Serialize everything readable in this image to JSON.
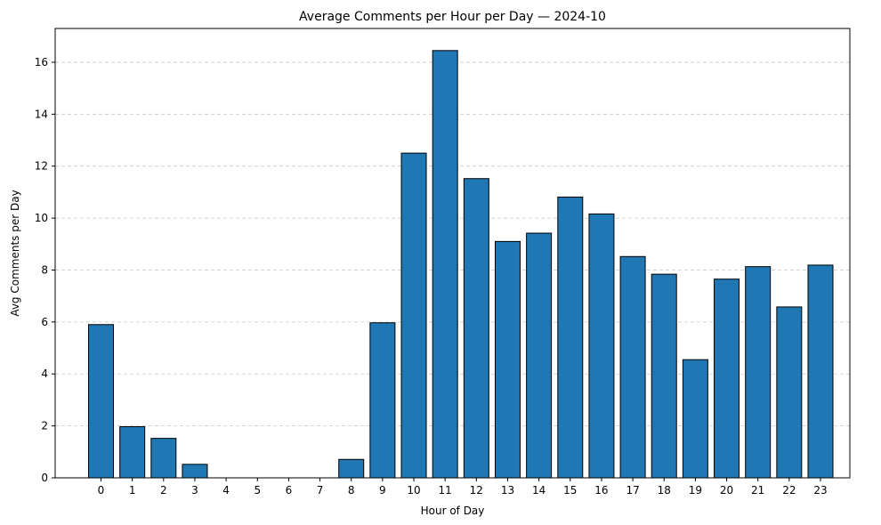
{
  "chart_data": {
    "type": "bar",
    "title": "Average Comments per Hour per Day — 2024-10",
    "xlabel": "Hour of Day",
    "ylabel": "Avg Comments per Day",
    "categories": [
      "0",
      "1",
      "2",
      "3",
      "4",
      "5",
      "6",
      "7",
      "8",
      "9",
      "10",
      "11",
      "12",
      "13",
      "14",
      "15",
      "16",
      "17",
      "18",
      "19",
      "20",
      "21",
      "22",
      "23"
    ],
    "values": [
      5.9,
      1.97,
      1.52,
      0.52,
      0,
      0,
      0,
      0,
      0.71,
      5.97,
      12.5,
      16.45,
      11.52,
      9.1,
      9.42,
      10.81,
      10.16,
      8.52,
      7.84,
      4.55,
      7.65,
      8.13,
      6.58,
      8.19
    ],
    "ylim": [
      0,
      17.3
    ],
    "yticks": [
      "0",
      "2",
      "4",
      "6",
      "8",
      "10",
      "12",
      "14",
      "16"
    ],
    "grid": "y-dashed",
    "bar_color": "#1f77b4",
    "bar_edge_color": "#000000",
    "grid_color": "#c8c8c8"
  }
}
